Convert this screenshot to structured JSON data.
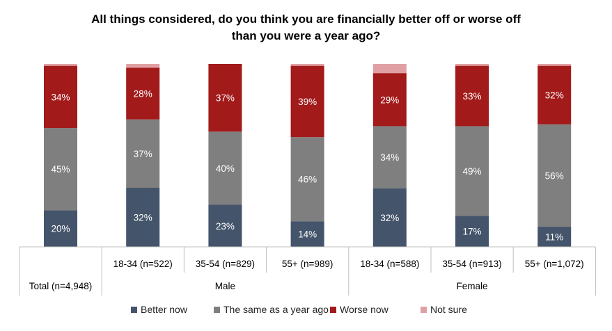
{
  "chart_data": {
    "type": "bar",
    "stacked": true,
    "title_lines": [
      "All things considered, do you think you are financially better off or worse off",
      "than you were a year ago?"
    ],
    "categories": [
      "Total (n=4,948)",
      "18-34 (n=522)",
      "35-54 (n=829)",
      "55+ (n=989)",
      "18-34 (n=588)",
      "35-54 (n=913)",
      "55+ (n=1,072)"
    ],
    "groups": [
      {
        "label": "",
        "members": [
          0
        ]
      },
      {
        "label": "Male",
        "members": [
          1,
          2,
          3
        ]
      },
      {
        "label": "Female",
        "members": [
          4,
          5,
          6
        ]
      }
    ],
    "series": [
      {
        "name": "Better now",
        "color": "#44546a",
        "values": [
          20,
          32,
          23,
          14,
          32,
          17,
          11
        ],
        "labels": [
          "20%",
          "32%",
          "23%",
          "14%",
          "32%",
          "17%",
          "11%"
        ]
      },
      {
        "name": "The same as a year ago",
        "color": "#7f7f7f",
        "values": [
          45,
          37,
          40,
          46,
          34,
          49,
          56
        ],
        "labels": [
          "45%",
          "37%",
          "40%",
          "46%",
          "34%",
          "49%",
          "56%"
        ]
      },
      {
        "name": "Worse now",
        "color": "#a21a1a",
        "values": [
          34,
          28,
          37,
          39,
          29,
          33,
          32
        ],
        "labels": [
          "34%",
          "28%",
          "37%",
          "39%",
          "29%",
          "33%",
          "32%"
        ]
      },
      {
        "name": "Not sure",
        "color": "#e0a0a3",
        "values": [
          1,
          2,
          0,
          1,
          5,
          1,
          1
        ],
        "labels": [
          "",
          "",
          "",
          "",
          "",
          "",
          ""
        ]
      }
    ],
    "ylim": [
      0,
      100
    ],
    "legend_position": "bottom"
  }
}
